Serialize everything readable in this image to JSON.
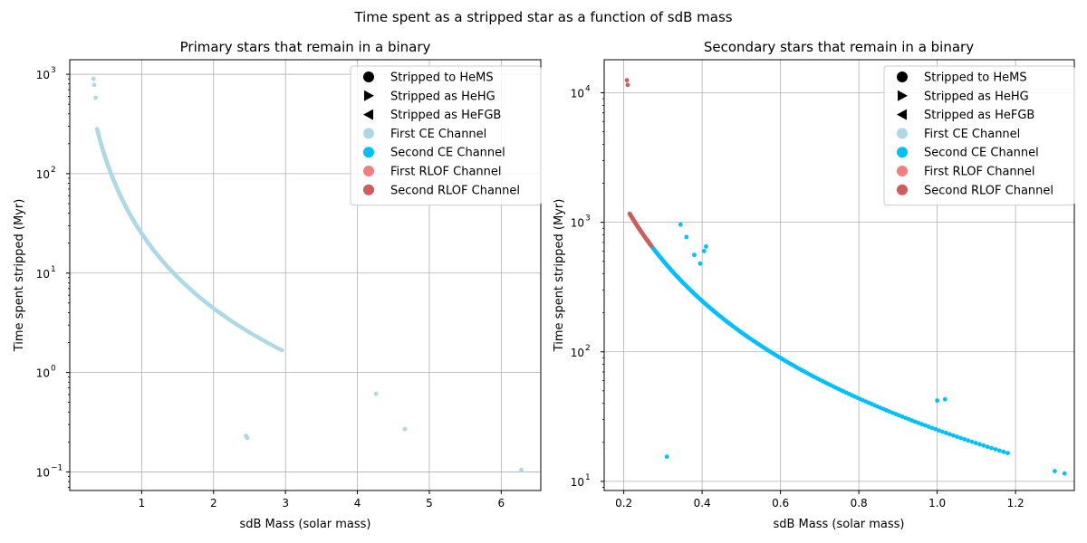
{
  "figure": {
    "title": "Time spent as a stripped star as a function of sdB mass"
  },
  "legend": {
    "placement": "top-right",
    "entries": [
      {
        "label": "Stripped to HeMS",
        "marker": "circle",
        "color": "#000000"
      },
      {
        "label": "Stripped as HeHG",
        "marker": "triangle-right",
        "color": "#000000"
      },
      {
        "label": "Stripped as HeFGB",
        "marker": "triangle-left",
        "color": "#000000"
      },
      {
        "label": "First CE Channel",
        "marker": "circle",
        "color": "#add8e6"
      },
      {
        "label": "Second CE Channel",
        "marker": "circle",
        "color": "#00bfff"
      },
      {
        "label": "First RLOF Channel",
        "marker": "circle",
        "color": "#f08080"
      },
      {
        "label": "Second RLOF Channel",
        "marker": "circle",
        "color": "#cd5c5c"
      }
    ]
  },
  "chart_data": [
    {
      "type": "scatter",
      "title": "Primary stars that remain in a binary",
      "xlabel": "sdB Mass (solar mass)",
      "ylabel": "Time spent stripped (Myr)",
      "xlim": [
        0.0,
        6.55
      ],
      "ylim": [
        0.065,
        1400
      ],
      "yscale": "log",
      "grid": true,
      "xticks": [
        1,
        2,
        3,
        4,
        5,
        6
      ],
      "xtick_labels": [
        "1",
        "2",
        "3",
        "4",
        "5",
        "6"
      ],
      "yticks": [
        0.1,
        1,
        10,
        100,
        1000
      ],
      "ytick_labels": [
        "10",
        "10",
        "10",
        "10",
        "10"
      ],
      "ytick_exponents": [
        "−1",
        "0",
        "1",
        "2",
        "3"
      ],
      "series": [
        {
          "name": "First CE Channel",
          "color": "#add8e6",
          "curve": {
            "a": 25,
            "p": 2.5,
            "x_from": 0.38,
            "x_to": 2.95,
            "n": 150
          },
          "points": [
            [
              0.33,
              900
            ],
            [
              0.34,
              780
            ],
            [
              0.36,
              580
            ],
            [
              2.45,
              0.23
            ],
            [
              2.47,
              0.22
            ],
            [
              4.26,
              0.61
            ],
            [
              4.66,
              0.27
            ],
            [
              6.28,
              0.105
            ]
          ]
        }
      ]
    },
    {
      "type": "scatter",
      "title": "Secondary stars that remain in a binary",
      "xlabel": "sdB Mass (solar mass)",
      "ylabel": "Time spent stripped (Myr)",
      "xlim": [
        0.15,
        1.35
      ],
      "ylim": [
        8.5,
        18000
      ],
      "yscale": "log",
      "grid": true,
      "xticks": [
        0.2,
        0.4,
        0.6,
        0.8,
        1.0,
        1.2
      ],
      "xtick_labels": [
        "0.2",
        "0.4",
        "0.6",
        "0.8",
        "1.0",
        "1.2"
      ],
      "yticks": [
        10,
        100,
        1000,
        10000
      ],
      "ytick_labels": [
        "10",
        "10",
        "10",
        "10"
      ],
      "ytick_exponents": [
        "1",
        "2",
        "3",
        "4"
      ],
      "series": [
        {
          "name": "Second CE Channel",
          "color": "#00bfff",
          "curve": {
            "a": 25,
            "p": 2.5,
            "x_from": 0.26,
            "x_to": 1.18,
            "n": 170
          },
          "points": [
            [
              0.31,
              15.5
            ],
            [
              0.345,
              960
            ],
            [
              0.36,
              770
            ],
            [
              0.38,
              560
            ],
            [
              0.395,
              480
            ],
            [
              0.405,
              600
            ],
            [
              0.41,
              650
            ],
            [
              1.0,
              42
            ],
            [
              1.02,
              43
            ],
            [
              1.3,
              12
            ],
            [
              1.325,
              11.5
            ]
          ]
        },
        {
          "name": "Second RLOF Channel",
          "color": "#cd5c5c",
          "curve": {
            "a": 25,
            "p": 2.5,
            "x_from": 0.215,
            "x_to": 0.27,
            "n": 45
          },
          "points": [
            [
              0.208,
              12500
            ],
            [
              0.21,
              11500
            ]
          ]
        }
      ]
    }
  ]
}
